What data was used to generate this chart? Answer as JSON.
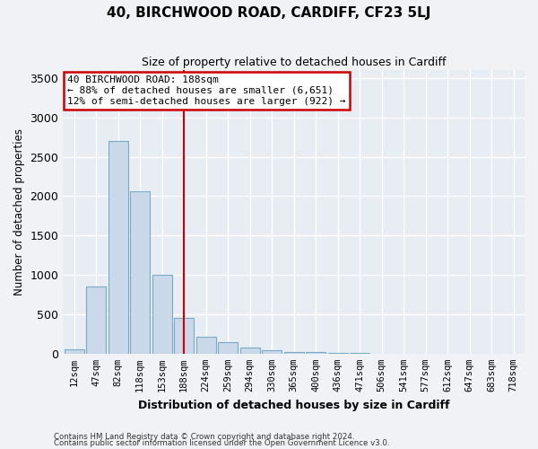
{
  "title": "40, BIRCHWOOD ROAD, CARDIFF, CF23 5LJ",
  "subtitle": "Size of property relative to detached houses in Cardiff",
  "xlabel": "Distribution of detached houses by size in Cardiff",
  "ylabel": "Number of detached properties",
  "bar_color": "#cad9ea",
  "bar_edge_color": "#7aaac8",
  "background_color": "#e8edf4",
  "grid_color": "#ffffff",
  "fig_bg_color": "#f0f2f5",
  "categories": [
    "12sqm",
    "47sqm",
    "82sqm",
    "118sqm",
    "153sqm",
    "188sqm",
    "224sqm",
    "259sqm",
    "294sqm",
    "330sqm",
    "365sqm",
    "400sqm",
    "436sqm",
    "471sqm",
    "506sqm",
    "541sqm",
    "577sqm",
    "612sqm",
    "647sqm",
    "683sqm",
    "718sqm"
  ],
  "values": [
    60,
    850,
    2700,
    2060,
    1000,
    450,
    215,
    145,
    80,
    40,
    25,
    15,
    8,
    5,
    3,
    2,
    1,
    0,
    0,
    0,
    0
  ],
  "property_line_x": 5,
  "annotation_line1": "40 BIRCHWOOD ROAD: 188sqm",
  "annotation_line2": "← 88% of detached houses are smaller (6,651)",
  "annotation_line3": "12% of semi-detached houses are larger (922) →",
  "annotation_box_color": "#ffffff",
  "annotation_box_edge_color": "#cc0000",
  "vline_color": "#cc0000",
  "ylim": [
    0,
    3600
  ],
  "yticks": [
    0,
    500,
    1000,
    1500,
    2000,
    2500,
    3000,
    3500
  ],
  "footnote1": "Contains HM Land Registry data © Crown copyright and database right 2024.",
  "footnote2": "Contains public sector information licensed under the Open Government Licence v3.0."
}
